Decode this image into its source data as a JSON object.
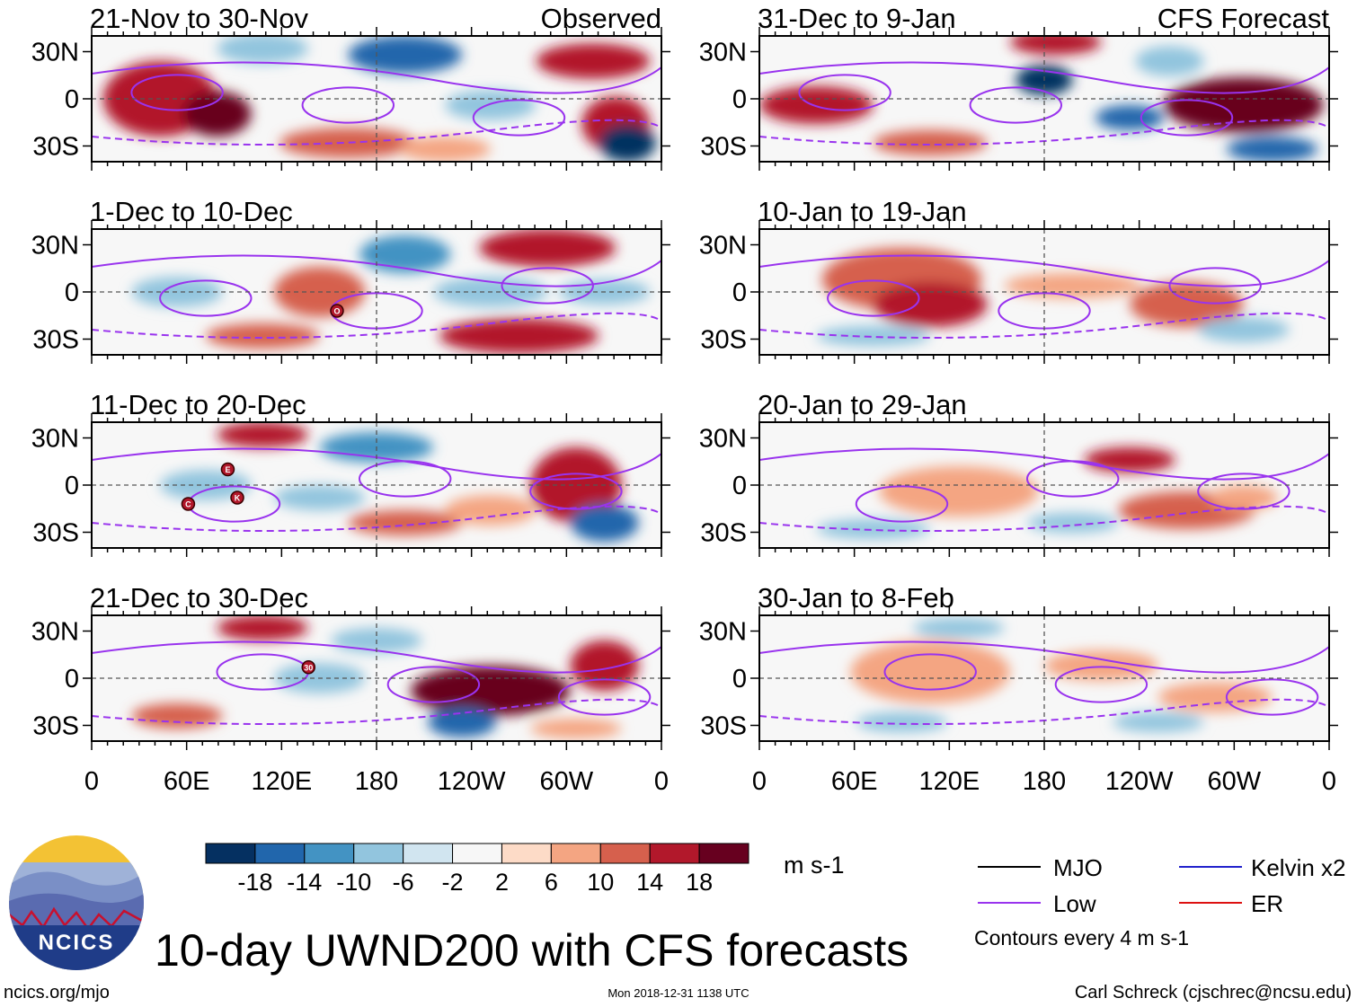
{
  "figure": {
    "title": "10-day UWND200 with CFS forecasts",
    "site": "ncics.org/mjo",
    "timestamp": "Mon 2018-12-31 1138 UTC",
    "author": "Carl Schreck (cjschrec@ncsu.edu)",
    "logo_text": "NCICS"
  },
  "chart_data": {
    "type": "heatmap",
    "variable": "200-hPa zonal wind anomaly (10-day mean)",
    "x_ticks": [
      "0",
      "60E",
      "120E",
      "180",
      "120W",
      "60W",
      "0"
    ],
    "y_ticks": [
      "30N",
      "0",
      "30S"
    ],
    "xlim": [
      0,
      360
    ],
    "ylim": [
      -40,
      40
    ],
    "columns": [
      {
        "label": "Observed",
        "panels": [
          {
            "title": "21-Nov to 30-Nov",
            "cyclones": []
          },
          {
            "title": "1-Dec to 10-Dec",
            "cyclones": [
              {
                "label": "O",
                "lon": 155,
                "lat": -12
              }
            ]
          },
          {
            "title": "11-Dec to 20-Dec",
            "cyclones": [
              {
                "label": "E",
                "lon": 86,
                "lat": 10
              },
              {
                "label": "C",
                "lon": 61,
                "lat": -12
              },
              {
                "label": "K",
                "lon": 92,
                "lat": -8
              }
            ]
          },
          {
            "title": "21-Dec to 30-Dec",
            "cyclones": [
              {
                "label": "30",
                "lon": 137,
                "lat": 7
              }
            ]
          }
        ]
      },
      {
        "label": "CFS Forecast",
        "panels": [
          {
            "title": "31-Dec to 9-Jan",
            "cyclones": []
          },
          {
            "title": "10-Jan to 19-Jan",
            "cyclones": []
          },
          {
            "title": "20-Jan to 29-Jan",
            "cyclones": []
          },
          {
            "title": "30-Jan to 8-Feb",
            "cyclones": []
          }
        ]
      }
    ],
    "colorbar": {
      "unit": "m s-1",
      "labels": [
        "-18",
        "-14",
        "-10",
        "-6",
        "-2",
        "2",
        "6",
        "10",
        "14",
        "18"
      ],
      "colors": [
        "#053061",
        "#2166ac",
        "#4393c3",
        "#92c5de",
        "#d1e5f0",
        "#f7f7f7",
        "#fddbc7",
        "#f4a582",
        "#d6604d",
        "#b2182b",
        "#67001f"
      ]
    },
    "legend": [
      {
        "label": "MJO",
        "color": "#000000"
      },
      {
        "label": "Kelvin x2",
        "color": "#2222cc"
      },
      {
        "label": "Low",
        "color": "#9933ee"
      },
      {
        "label": "ER",
        "color": "#dd1111"
      }
    ],
    "contour_note": "Contours every 4 m s-1"
  }
}
